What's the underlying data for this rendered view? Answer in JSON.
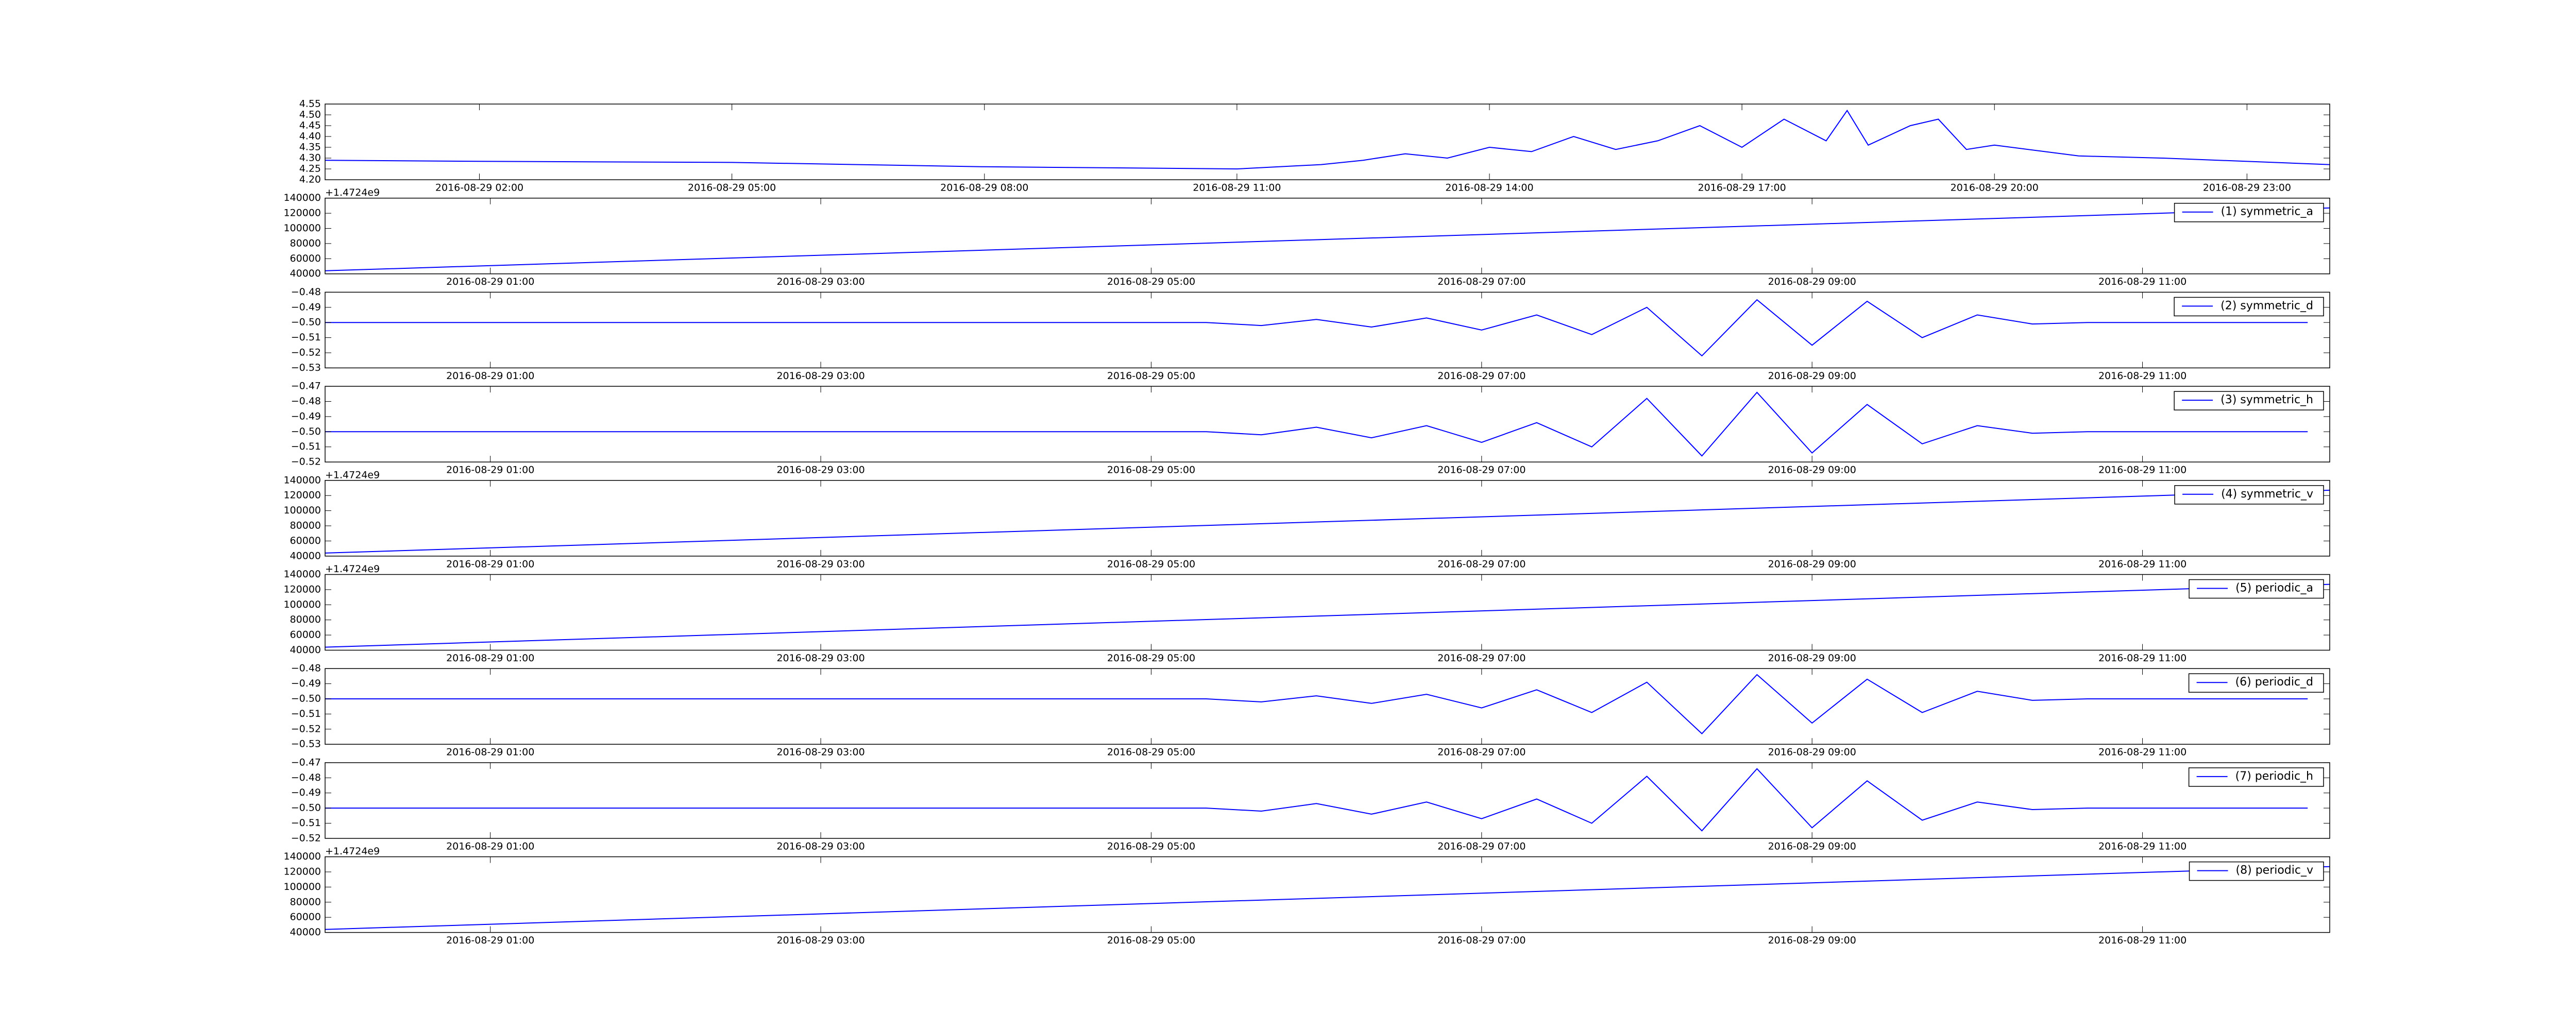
{
  "chart_data": [
    {
      "type": "line",
      "x": [
        "2016-08-29 00:10",
        "2016-08-29 02:00",
        "2016-08-29 05:00",
        "2016-08-29 08:00",
        "2016-08-29 11:00",
        "2016-08-29 12:00",
        "2016-08-29 12:30",
        "2016-08-29 13:00",
        "2016-08-29 13:30",
        "2016-08-29 14:00",
        "2016-08-29 14:30",
        "2016-08-29 15:00",
        "2016-08-29 15:30",
        "2016-08-29 16:00",
        "2016-08-29 16:30",
        "2016-08-29 17:00",
        "2016-08-29 17:30",
        "2016-08-29 18:00",
        "2016-08-29 18:15",
        "2016-08-29 18:30",
        "2016-08-29 19:00",
        "2016-08-29 19:20",
        "2016-08-29 19:40",
        "2016-08-29 20:00",
        "2016-08-29 21:00",
        "2016-08-29 22:00",
        "2016-08-29 23:59"
      ],
      "series": [
        {
          "color": "#0000ff",
          "values": [
            4.29,
            4.285,
            4.28,
            4.26,
            4.25,
            4.27,
            4.29,
            4.32,
            4.3,
            4.35,
            4.33,
            4.4,
            4.34,
            4.38,
            4.45,
            4.35,
            4.48,
            4.38,
            4.52,
            4.36,
            4.45,
            4.48,
            4.34,
            4.36,
            4.31,
            4.3,
            4.27
          ]
        }
      ],
      "xlim": [
        "2016-08-29 00:10",
        "2016-08-29 23:59"
      ],
      "xticks": [
        "2016-08-29 02:00",
        "2016-08-29 05:00",
        "2016-08-29 08:00",
        "2016-08-29 11:00",
        "2016-08-29 14:00",
        "2016-08-29 17:00",
        "2016-08-29 20:00",
        "2016-08-29 23:00"
      ],
      "ylim": [
        4.2,
        4.55
      ],
      "yticks": [
        {
          "value": 4.2,
          "label": "4.20"
        },
        4.25,
        {
          "value": 4.3,
          "label": "4.30"
        },
        4.35,
        {
          "value": 4.4,
          "label": "4.40"
        },
        4.45,
        {
          "value": 4.5,
          "label": "4.50"
        },
        4.55
      ]
    },
    {
      "type": "line",
      "offset_label": "+1.4724e9",
      "x": [
        "2016-08-29 00:00",
        "2016-08-29 12:08"
      ],
      "series": [
        {
          "name": "(1) symmetric_a",
          "color": "#0000ff",
          "values": [
            44000,
            127000
          ]
        }
      ],
      "legend": "upper right",
      "xlim": [
        "2016-08-29 00:00",
        "2016-08-29 12:08"
      ],
      "xticks": [
        "2016-08-29 01:00",
        "2016-08-29 03:00",
        "2016-08-29 05:00",
        "2016-08-29 07:00",
        "2016-08-29 09:00",
        "2016-08-29 11:00"
      ],
      "ylim": [
        40000,
        140000
      ],
      "yticks": [
        40000,
        60000,
        80000,
        100000,
        120000,
        140000
      ]
    },
    {
      "type": "line",
      "x": [
        "2016-08-29 00:00",
        "2016-08-29 00:20",
        "2016-08-29 00:40",
        "2016-08-29 01:00",
        "2016-08-29 01:20",
        "2016-08-29 01:40",
        "2016-08-29 02:00",
        "2016-08-29 02:20",
        "2016-08-29 02:40",
        "2016-08-29 03:00",
        "2016-08-29 03:20",
        "2016-08-29 03:40",
        "2016-08-29 04:00",
        "2016-08-29 04:20",
        "2016-08-29 04:40",
        "2016-08-29 05:00",
        "2016-08-29 05:20",
        "2016-08-29 05:40",
        "2016-08-29 06:00",
        "2016-08-29 06:20",
        "2016-08-29 06:40",
        "2016-08-29 07:00",
        "2016-08-29 07:20",
        "2016-08-29 07:40",
        "2016-08-29 08:00",
        "2016-08-29 08:20",
        "2016-08-29 08:40",
        "2016-08-29 09:00",
        "2016-08-29 09:20",
        "2016-08-29 09:40",
        "2016-08-29 10:00",
        "2016-08-29 10:20",
        "2016-08-29 10:40",
        "2016-08-29 11:00",
        "2016-08-29 11:20",
        "2016-08-29 11:40",
        "2016-08-29 12:00"
      ],
      "series": [
        {
          "name": "(2) symmetric_d",
          "color": "#0000ff",
          "values": [
            -0.5,
            -0.5,
            -0.5,
            -0.5,
            -0.5,
            -0.5,
            -0.5,
            -0.5,
            -0.5,
            -0.5,
            -0.5,
            -0.5,
            -0.5,
            -0.5,
            -0.5,
            -0.5,
            -0.5,
            -0.502,
            -0.498,
            -0.503,
            -0.497,
            -0.505,
            -0.495,
            -0.508,
            -0.49,
            -0.522,
            -0.485,
            -0.515,
            -0.486,
            -0.51,
            -0.495,
            -0.501,
            -0.5,
            -0.5,
            -0.5,
            -0.5,
            -0.5
          ]
        }
      ],
      "legend": "upper right",
      "xlim": [
        "2016-08-29 00:00",
        "2016-08-29 12:08"
      ],
      "xticks": [
        "2016-08-29 01:00",
        "2016-08-29 03:00",
        "2016-08-29 05:00",
        "2016-08-29 07:00",
        "2016-08-29 09:00",
        "2016-08-29 11:00"
      ],
      "ylim": [
        -0.53,
        -0.48
      ],
      "yticks": [
        {
          "value": -0.53,
          "label": "−0.53"
        },
        {
          "value": -0.52,
          "label": "−0.52"
        },
        {
          "value": -0.51,
          "label": "−0.51"
        },
        {
          "value": -0.5,
          "label": "−0.50"
        },
        {
          "value": -0.49,
          "label": "−0.49"
        },
        {
          "value": -0.48,
          "label": "−0.48"
        }
      ]
    },
    {
      "type": "line",
      "x": [
        "2016-08-29 00:00",
        "2016-08-29 00:20",
        "2016-08-29 00:40",
        "2016-08-29 01:00",
        "2016-08-29 01:20",
        "2016-08-29 01:40",
        "2016-08-29 02:00",
        "2016-08-29 02:20",
        "2016-08-29 02:40",
        "2016-08-29 03:00",
        "2016-08-29 03:20",
        "2016-08-29 03:40",
        "2016-08-29 04:00",
        "2016-08-29 04:20",
        "2016-08-29 04:40",
        "2016-08-29 05:00",
        "2016-08-29 05:20",
        "2016-08-29 05:40",
        "2016-08-29 06:00",
        "2016-08-29 06:20",
        "2016-08-29 06:40",
        "2016-08-29 07:00",
        "2016-08-29 07:20",
        "2016-08-29 07:40",
        "2016-08-29 08:00",
        "2016-08-29 08:20",
        "2016-08-29 08:40",
        "2016-08-29 09:00",
        "2016-08-29 09:20",
        "2016-08-29 09:40",
        "2016-08-29 10:00",
        "2016-08-29 10:20",
        "2016-08-29 10:40",
        "2016-08-29 11:00",
        "2016-08-29 11:20",
        "2016-08-29 11:40",
        "2016-08-29 12:00"
      ],
      "series": [
        {
          "name": "(3) symmetric_h",
          "color": "#0000ff",
          "values": [
            -0.5,
            -0.5,
            -0.5,
            -0.5,
            -0.5,
            -0.5,
            -0.5,
            -0.5,
            -0.5,
            -0.5,
            -0.5,
            -0.5,
            -0.5,
            -0.5,
            -0.5,
            -0.5,
            -0.5,
            -0.502,
            -0.497,
            -0.504,
            -0.496,
            -0.507,
            -0.494,
            -0.51,
            -0.478,
            -0.516,
            -0.474,
            -0.514,
            -0.482,
            -0.508,
            -0.496,
            -0.501,
            -0.5,
            -0.5,
            -0.5,
            -0.5,
            -0.5
          ]
        }
      ],
      "legend": "upper right",
      "xlim": [
        "2016-08-29 00:00",
        "2016-08-29 12:08"
      ],
      "xticks": [
        "2016-08-29 01:00",
        "2016-08-29 03:00",
        "2016-08-29 05:00",
        "2016-08-29 07:00",
        "2016-08-29 09:00",
        "2016-08-29 11:00"
      ],
      "ylim": [
        -0.52,
        -0.47
      ],
      "yticks": [
        {
          "value": -0.52,
          "label": "−0.52"
        },
        {
          "value": -0.51,
          "label": "−0.51"
        },
        {
          "value": -0.5,
          "label": "−0.50"
        },
        {
          "value": -0.49,
          "label": "−0.49"
        },
        {
          "value": -0.48,
          "label": "−0.48"
        },
        {
          "value": -0.47,
          "label": "−0.47"
        }
      ]
    },
    {
      "type": "line",
      "offset_label": "+1.4724e9",
      "x": [
        "2016-08-29 00:00",
        "2016-08-29 12:08"
      ],
      "series": [
        {
          "name": "(4) symmetric_v",
          "color": "#0000ff",
          "values": [
            44000,
            127000
          ]
        }
      ],
      "legend": "upper right",
      "xlim": [
        "2016-08-29 00:00",
        "2016-08-29 12:08"
      ],
      "xticks": [
        "2016-08-29 01:00",
        "2016-08-29 03:00",
        "2016-08-29 05:00",
        "2016-08-29 07:00",
        "2016-08-29 09:00",
        "2016-08-29 11:00"
      ],
      "ylim": [
        40000,
        140000
      ],
      "yticks": [
        40000,
        60000,
        80000,
        100000,
        120000,
        140000
      ]
    },
    {
      "type": "line",
      "offset_label": "+1.4724e9",
      "x": [
        "2016-08-29 00:00",
        "2016-08-29 12:08"
      ],
      "series": [
        {
          "name": "(5) periodic_a",
          "color": "#0000ff",
          "values": [
            44000,
            127000
          ]
        }
      ],
      "legend": "upper right",
      "xlim": [
        "2016-08-29 00:00",
        "2016-08-29 12:08"
      ],
      "xticks": [
        "2016-08-29 01:00",
        "2016-08-29 03:00",
        "2016-08-29 05:00",
        "2016-08-29 07:00",
        "2016-08-29 09:00",
        "2016-08-29 11:00"
      ],
      "ylim": [
        40000,
        140000
      ],
      "yticks": [
        40000,
        60000,
        80000,
        100000,
        120000,
        140000
      ]
    },
    {
      "type": "line",
      "x": [
        "2016-08-29 00:00",
        "2016-08-29 00:20",
        "2016-08-29 00:40",
        "2016-08-29 01:00",
        "2016-08-29 01:20",
        "2016-08-29 01:40",
        "2016-08-29 02:00",
        "2016-08-29 02:20",
        "2016-08-29 02:40",
        "2016-08-29 03:00",
        "2016-08-29 03:20",
        "2016-08-29 03:40",
        "2016-08-29 04:00",
        "2016-08-29 04:20",
        "2016-08-29 04:40",
        "2016-08-29 05:00",
        "2016-08-29 05:20",
        "2016-08-29 05:40",
        "2016-08-29 06:00",
        "2016-08-29 06:20",
        "2016-08-29 06:40",
        "2016-08-29 07:00",
        "2016-08-29 07:20",
        "2016-08-29 07:40",
        "2016-08-29 08:00",
        "2016-08-29 08:20",
        "2016-08-29 08:40",
        "2016-08-29 09:00",
        "2016-08-29 09:20",
        "2016-08-29 09:40",
        "2016-08-29 10:00",
        "2016-08-29 10:20",
        "2016-08-29 10:40",
        "2016-08-29 11:00",
        "2016-08-29 11:20",
        "2016-08-29 11:40",
        "2016-08-29 12:00"
      ],
      "series": [
        {
          "name": "(6) periodic_d",
          "color": "#0000ff",
          "values": [
            -0.5,
            -0.5,
            -0.5,
            -0.5,
            -0.5,
            -0.5,
            -0.5,
            -0.5,
            -0.5,
            -0.5,
            -0.5,
            -0.5,
            -0.5,
            -0.5,
            -0.5,
            -0.5,
            -0.5,
            -0.502,
            -0.498,
            -0.503,
            -0.497,
            -0.506,
            -0.494,
            -0.509,
            -0.489,
            -0.523,
            -0.484,
            -0.516,
            -0.487,
            -0.509,
            -0.495,
            -0.501,
            -0.5,
            -0.5,
            -0.5,
            -0.5,
            -0.5
          ]
        }
      ],
      "legend": "upper right",
      "xlim": [
        "2016-08-29 00:00",
        "2016-08-29 12:08"
      ],
      "xticks": [
        "2016-08-29 01:00",
        "2016-08-29 03:00",
        "2016-08-29 05:00",
        "2016-08-29 07:00",
        "2016-08-29 09:00",
        "2016-08-29 11:00"
      ],
      "ylim": [
        -0.53,
        -0.48
      ],
      "yticks": [
        {
          "value": -0.53,
          "label": "−0.53"
        },
        {
          "value": -0.52,
          "label": "−0.52"
        },
        {
          "value": -0.51,
          "label": "−0.51"
        },
        {
          "value": -0.5,
          "label": "−0.50"
        },
        {
          "value": -0.49,
          "label": "−0.49"
        },
        {
          "value": -0.48,
          "label": "−0.48"
        }
      ]
    },
    {
      "type": "line",
      "x": [
        "2016-08-29 00:00",
        "2016-08-29 00:20",
        "2016-08-29 00:40",
        "2016-08-29 01:00",
        "2016-08-29 01:20",
        "2016-08-29 01:40",
        "2016-08-29 02:00",
        "2016-08-29 02:20",
        "2016-08-29 02:40",
        "2016-08-29 03:00",
        "2016-08-29 03:20",
        "2016-08-29 03:40",
        "2016-08-29 04:00",
        "2016-08-29 04:20",
        "2016-08-29 04:40",
        "2016-08-29 05:00",
        "2016-08-29 05:20",
        "2016-08-29 05:40",
        "2016-08-29 06:00",
        "2016-08-29 06:20",
        "2016-08-29 06:40",
        "2016-08-29 07:00",
        "2016-08-29 07:20",
        "2016-08-29 07:40",
        "2016-08-29 08:00",
        "2016-08-29 08:20",
        "2016-08-29 08:40",
        "2016-08-29 09:00",
        "2016-08-29 09:20",
        "2016-08-29 09:40",
        "2016-08-29 10:00",
        "2016-08-29 10:20",
        "2016-08-29 10:40",
        "2016-08-29 11:00",
        "2016-08-29 11:20",
        "2016-08-29 11:40",
        "2016-08-29 12:00"
      ],
      "series": [
        {
          "name": "(7) periodic_h",
          "color": "#0000ff",
          "values": [
            -0.5,
            -0.5,
            -0.5,
            -0.5,
            -0.5,
            -0.5,
            -0.5,
            -0.5,
            -0.5,
            -0.5,
            -0.5,
            -0.5,
            -0.5,
            -0.5,
            -0.5,
            -0.5,
            -0.5,
            -0.502,
            -0.497,
            -0.504,
            -0.496,
            -0.507,
            -0.494,
            -0.51,
            -0.479,
            -0.515,
            -0.474,
            -0.513,
            -0.482,
            -0.508,
            -0.496,
            -0.501,
            -0.5,
            -0.5,
            -0.5,
            -0.5,
            -0.5
          ]
        }
      ],
      "legend": "upper right",
      "xlim": [
        "2016-08-29 00:00",
        "2016-08-29 12:08"
      ],
      "xticks": [
        "2016-08-29 01:00",
        "2016-08-29 03:00",
        "2016-08-29 05:00",
        "2016-08-29 07:00",
        "2016-08-29 09:00",
        "2016-08-29 11:00"
      ],
      "ylim": [
        -0.52,
        -0.47
      ],
      "yticks": [
        {
          "value": -0.52,
          "label": "−0.52"
        },
        {
          "value": -0.51,
          "label": "−0.51"
        },
        {
          "value": -0.5,
          "label": "−0.50"
        },
        {
          "value": -0.49,
          "label": "−0.49"
        },
        {
          "value": -0.48,
          "label": "−0.48"
        },
        {
          "value": -0.47,
          "label": "−0.47"
        }
      ]
    },
    {
      "type": "line",
      "offset_label": "+1.4724e9",
      "x": [
        "2016-08-29 00:00",
        "2016-08-29 12:08"
      ],
      "series": [
        {
          "name": "(8) periodic_v",
          "color": "#0000ff",
          "values": [
            44000,
            127000
          ]
        }
      ],
      "legend": "upper right",
      "xlim": [
        "2016-08-29 00:00",
        "2016-08-29 12:08"
      ],
      "xticks": [
        "2016-08-29 01:00",
        "2016-08-29 03:00",
        "2016-08-29 05:00",
        "2016-08-29 07:00",
        "2016-08-29 09:00",
        "2016-08-29 11:00"
      ],
      "ylim": [
        40000,
        140000
      ],
      "yticks": [
        40000,
        60000,
        80000,
        100000,
        120000,
        140000
      ]
    }
  ]
}
